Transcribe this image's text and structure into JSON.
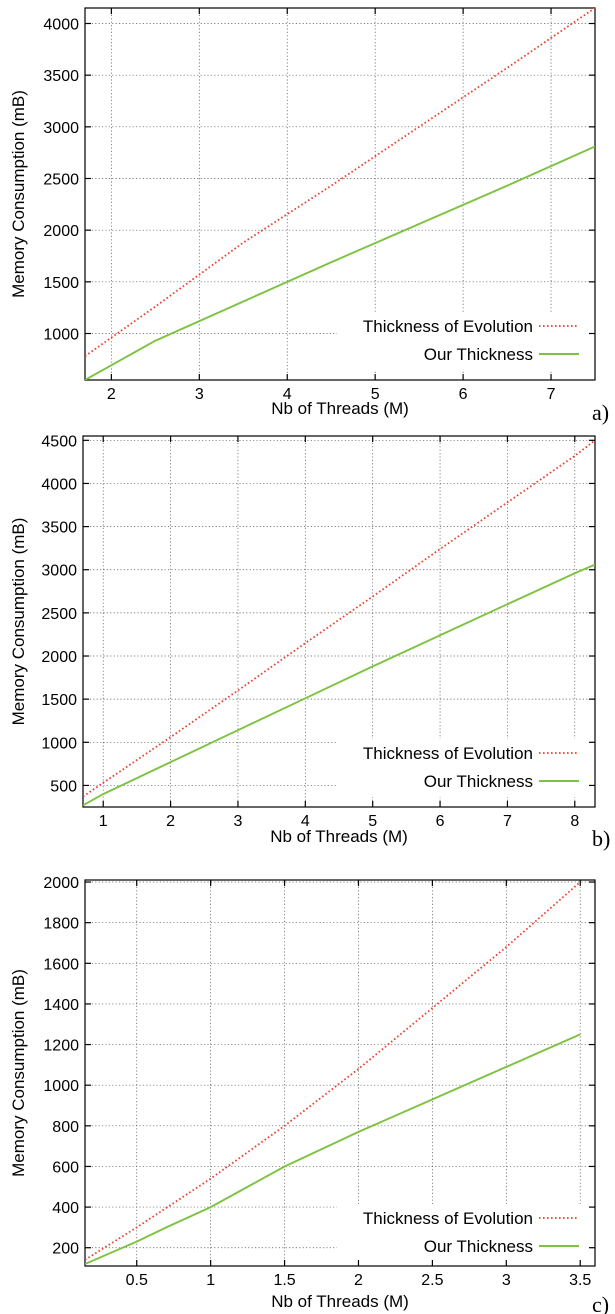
{
  "chart_data": [
    {
      "type": "line",
      "panel_label": "a)",
      "xlabel": "Nb of Threads (M)",
      "ylabel": "Memory Consumption  (mB)",
      "xlim": [
        1.7,
        7.5
      ],
      "ylim": [
        550,
        4150
      ],
      "xticks": [
        2,
        3,
        4,
        5,
        6,
        7
      ],
      "yticks": [
        1000,
        1500,
        2000,
        2500,
        3000,
        3500,
        4000
      ],
      "grid": true,
      "legend_position": "bottom-right",
      "series": [
        {
          "name": "Thickness of Evolution",
          "color": "#e8412c",
          "style": "dotted",
          "x": [
            1.7,
            2.5,
            3.5,
            4.5,
            5.5,
            6.5,
            7.5
          ],
          "y": [
            780,
            1260,
            1880,
            2430,
            3000,
            3570,
            4150
          ]
        },
        {
          "name": "Our Thickness",
          "color": "#7dc241",
          "style": "solid",
          "x": [
            1.7,
            2.5,
            3.5,
            4.5,
            5.5,
            6.5,
            7.5
          ],
          "y": [
            550,
            930,
            1310,
            1690,
            2060,
            2430,
            2810
          ]
        }
      ]
    },
    {
      "type": "line",
      "panel_label": "b)",
      "xlabel": "Nb of Threads (M)",
      "ylabel": "Memory Consumption  (mB)",
      "xlim": [
        0.7,
        8.3
      ],
      "ylim": [
        250,
        4550
      ],
      "xticks": [
        1,
        2,
        3,
        4,
        5,
        6,
        7,
        8
      ],
      "yticks": [
        500,
        1000,
        1500,
        2000,
        2500,
        3000,
        3500,
        4000,
        4500
      ],
      "grid": true,
      "legend_position": "bottom-right",
      "series": [
        {
          "name": "Thickness of Evolution",
          "color": "#e8412c",
          "style": "dotted",
          "x": [
            0.7,
            1,
            2,
            3,
            4,
            5,
            6,
            7,
            8,
            8.3
          ],
          "y": [
            370,
            530,
            1060,
            1600,
            2150,
            2690,
            3240,
            3780,
            4320,
            4500
          ]
        },
        {
          "name": "Our Thickness",
          "color": "#7dc241",
          "style": "solid",
          "x": [
            0.7,
            1,
            2,
            3,
            4,
            5,
            6,
            7,
            8,
            8.3
          ],
          "y": [
            270,
            400,
            770,
            1140,
            1510,
            1880,
            2240,
            2600,
            2960,
            3060
          ]
        }
      ]
    },
    {
      "type": "line",
      "panel_label": "c)",
      "xlabel": "Nb of Threads (M)",
      "ylabel": "Memory Consumption  (mB)",
      "xlim": [
        0.15,
        3.6
      ],
      "ylim": [
        110,
        2010
      ],
      "xticks": [
        0.5,
        1,
        1.5,
        2,
        2.5,
        3,
        3.5
      ],
      "yticks": [
        200,
        400,
        600,
        800,
        1000,
        1200,
        1400,
        1600,
        1800,
        2000
      ],
      "xtick_labels": [
        "0.5",
        "1",
        "1.5",
        "2",
        "2.5",
        "3",
        "3.5"
      ],
      "grid": true,
      "legend_position": "bottom-right",
      "series": [
        {
          "name": "Thickness of Evolution",
          "color": "#e8412c",
          "style": "dotted",
          "x": [
            0.15,
            0.5,
            1,
            1.5,
            2,
            2.5,
            3,
            3.5
          ],
          "y": [
            140,
            300,
            540,
            800,
            1080,
            1380,
            1680,
            2000
          ]
        },
        {
          "name": "Our Thickness",
          "color": "#7dc241",
          "style": "solid",
          "x": [
            0.15,
            0.5,
            0.7,
            1,
            1.5,
            2,
            2.5,
            3,
            3.5
          ],
          "y": [
            120,
            230,
            300,
            400,
            600,
            770,
            930,
            1090,
            1250
          ]
        }
      ]
    }
  ]
}
